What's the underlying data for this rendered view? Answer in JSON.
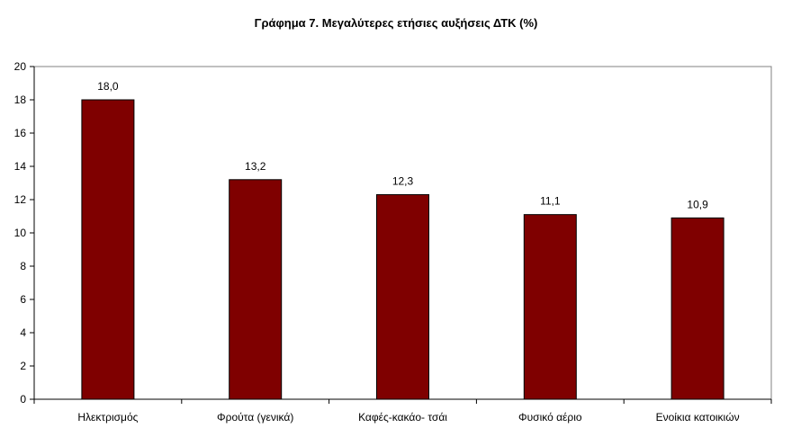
{
  "chart_data": {
    "type": "bar",
    "title": "Γράφημα 7. Μεγαλύτερες ετήσιες αυξήσεις ΔΤΚ (%)",
    "xlabel": "",
    "ylabel": "",
    "categories": [
      "Ηλεκτρισμός",
      "Φρούτα (γενικά)",
      "Καφές-κακάο- τσάι",
      "Φυσικό αέριο",
      "Ενοίκια κατοικιών"
    ],
    "values": [
      18.0,
      13.2,
      12.3,
      11.1,
      10.9
    ],
    "value_labels": [
      "18,0",
      "13,2",
      "12,3",
      "11,1",
      "10,9"
    ],
    "ylim": [
      0,
      20
    ],
    "yticks": [
      0,
      2,
      4,
      6,
      8,
      10,
      12,
      14,
      16,
      18,
      20
    ],
    "grid": false,
    "legend": "none",
    "colors": {
      "bar_fill": "#7f0000",
      "bar_stroke": "#000000",
      "axis": "#000000",
      "plot_border": "#808080"
    }
  }
}
